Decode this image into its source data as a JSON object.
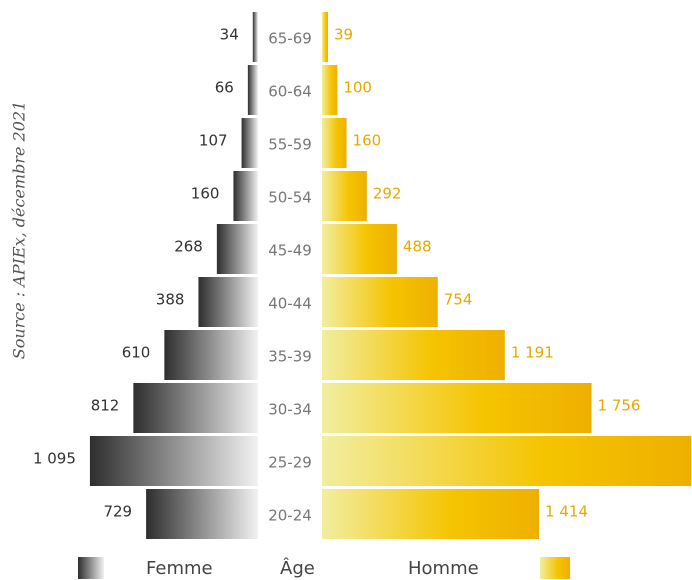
{
  "chart_data": {
    "type": "pyramid",
    "source": "Source : APIEx, décembre 2021",
    "category_label": "Âge",
    "categories": [
      "65-69",
      "60-64",
      "55-59",
      "50-54",
      "45-49",
      "40-44",
      "35-39",
      "30-34",
      "25-29",
      "20-24"
    ],
    "series": [
      {
        "name": "Femme",
        "color": "#3a3a3a",
        "values": [
          34,
          66,
          107,
          160,
          268,
          388,
          610,
          812,
          1095,
          729
        ],
        "value_labels": [
          "34",
          "66",
          "107",
          "160",
          "268",
          "388",
          "610",
          "812",
          "1 095",
          "729"
        ]
      },
      {
        "name": "Homme",
        "color": "#f2b600",
        "values": [
          39,
          100,
          160,
          292,
          488,
          754,
          1191,
          1756,
          2405,
          1414
        ],
        "value_labels": [
          "39",
          "100",
          "160",
          "292",
          "488",
          "754",
          "1 191",
          "1 756",
          null,
          "1 414"
        ]
      }
    ]
  }
}
